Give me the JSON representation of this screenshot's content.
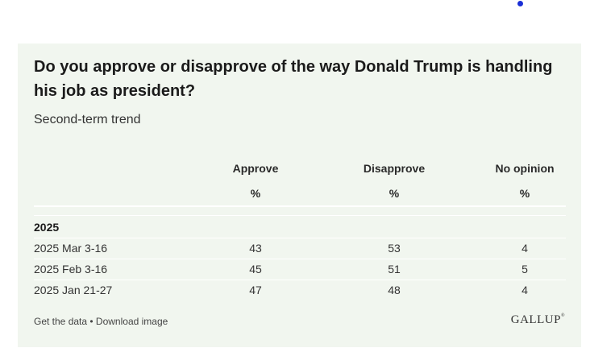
{
  "title": "Do you approve or disapprove of the way Donald Trump is handling his job as president?",
  "subtitle": "Second-term trend",
  "columns": [
    {
      "label": "Approve",
      "unit": "%"
    },
    {
      "label": "Disapprove",
      "unit": "%"
    },
    {
      "label": "No opinion",
      "unit": "%"
    }
  ],
  "section": "2025",
  "rows": [
    {
      "label": "2025 Mar 3-16",
      "values": [
        "43",
        "53",
        "4"
      ]
    },
    {
      "label": "2025 Feb 3-16",
      "values": [
        "45",
        "51",
        "5"
      ]
    },
    {
      "label": "2025 Jan 21-27",
      "values": [
        "47",
        "48",
        "4"
      ]
    }
  ],
  "footer": {
    "get_data": "Get the data",
    "separator": " • ",
    "download": "Download image",
    "logo": "GALLUP"
  },
  "colors": {
    "card_background": "#f1f6ef",
    "dot": "#1a2fd6"
  }
}
